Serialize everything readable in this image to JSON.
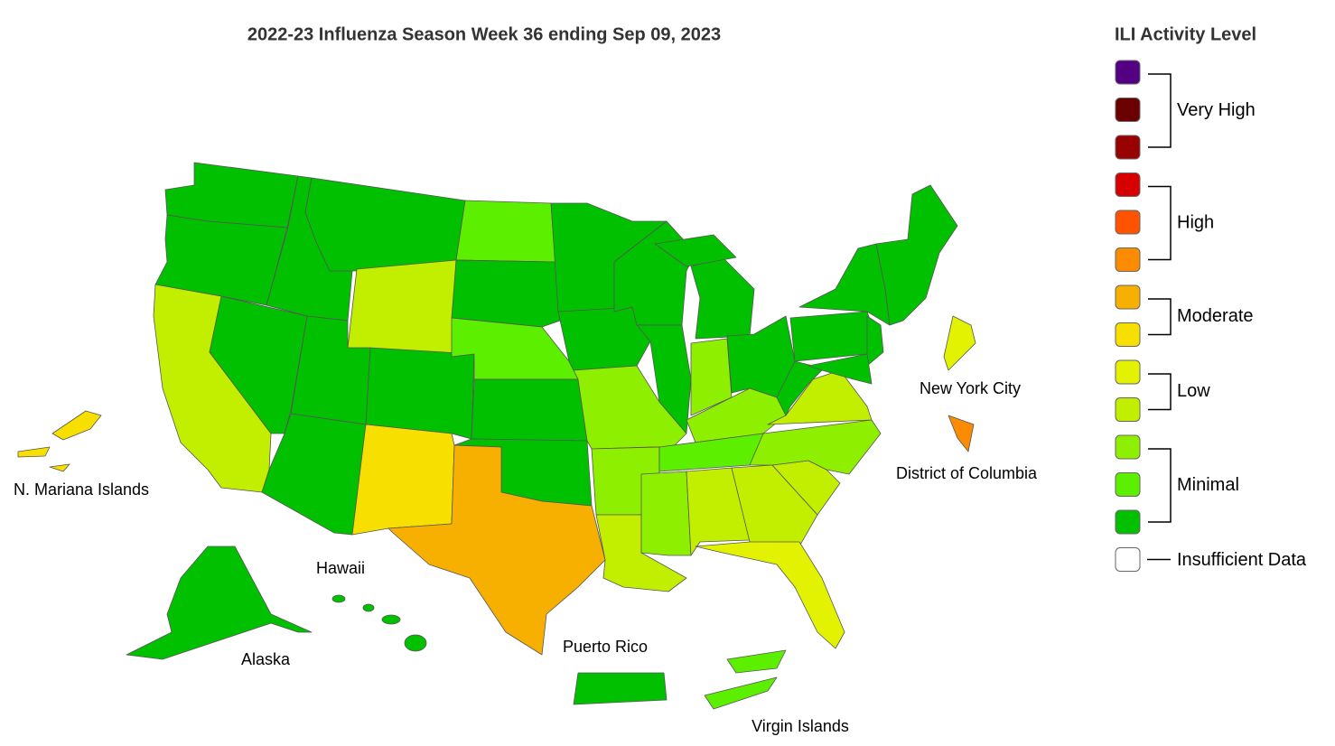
{
  "header": {
    "title": "2022-23 Influenza Season Week 36 ending Sep 09, 2023"
  },
  "labels": [
    "N. Mariana Islands",
    "Hawaii",
    "Alaska",
    "Puerto Rico",
    "Virgin Islands",
    "New York City",
    "District of Columbia"
  ],
  "legend": {
    "title": "ILI Activity Level",
    "groups": [
      {
        "label": "Very High",
        "colors": [
          "#530082",
          "#6b0000",
          "#990000"
        ]
      },
      {
        "label": "High",
        "colors": [
          "#d60000",
          "#ff5300",
          "#fb8b00"
        ]
      },
      {
        "label": "Moderate",
        "colors": [
          "#f8b000",
          "#f7e000"
        ]
      },
      {
        "label": "Low",
        "colors": [
          "#e3f200",
          "#c2ef00"
        ]
      },
      {
        "label": "Minimal",
        "colors": [
          "#8ef000",
          "#5cf000",
          "#00c000"
        ]
      },
      {
        "label": "Insufficient Data",
        "colors": [
          "#ffffff"
        ]
      }
    ]
  }
}
